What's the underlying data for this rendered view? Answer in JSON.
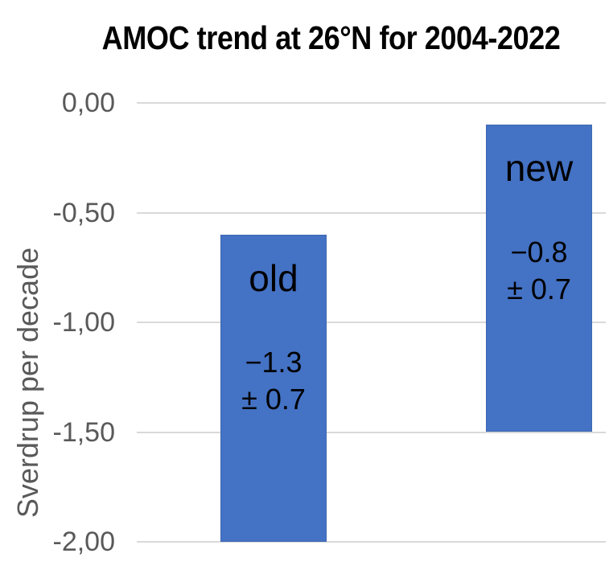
{
  "chart_data": {
    "type": "bar",
    "subtype": "floating-range-bars",
    "title": "AMOC trend at 26°N for 2004-2022",
    "xlabel": "",
    "ylabel": "Sverdrup per decade",
    "ylim": [
      -2.0,
      0.0
    ],
    "grid": true,
    "legend": "none (labels inside bars)",
    "yticks": [
      {
        "value": 0.0,
        "label": "0,00"
      },
      {
        "value": -0.5,
        "label": "-0,50"
      },
      {
        "value": -1.0,
        "label": "-1,00"
      },
      {
        "value": -1.5,
        "label": "-1,50"
      },
      {
        "value": -2.0,
        "label": "-2,00"
      }
    ],
    "bars": [
      {
        "category": "old",
        "trend_sv_per_decade": -1.3,
        "uncertainty_sv_per_decade": 0.7,
        "range_top": -0.6,
        "range_bottom": -2.0,
        "label_line1": "−1.3",
        "label_line2": "± 0.7"
      },
      {
        "category": "new",
        "trend_sv_per_decade": -0.8,
        "uncertainty_sv_per_decade": 0.7,
        "range_top": -0.1,
        "range_bottom": -1.5,
        "label_line1": "−0.8",
        "label_line2": "± 0.7"
      }
    ],
    "colors": {
      "bar_fill": "#4472C4",
      "bar_border": "#3E68B0",
      "gridline": "#D9D9D9",
      "axis_text": "#595959",
      "title_text": "#000000",
      "bar_label_text": "#000000"
    }
  }
}
